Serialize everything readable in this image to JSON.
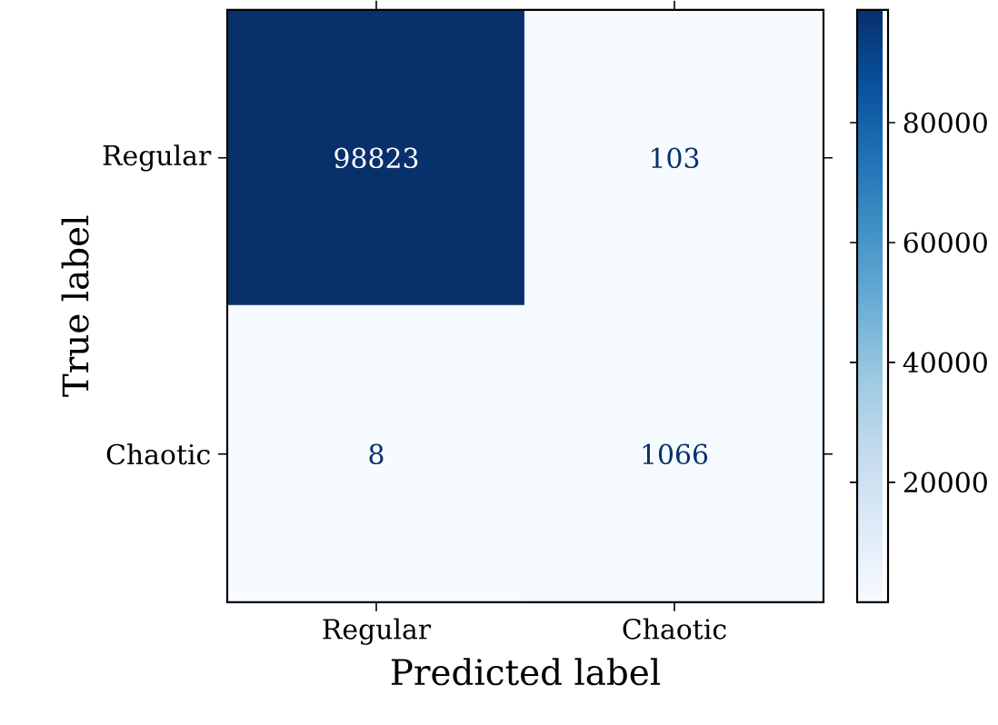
{
  "chart_data": {
    "type": "heatmap",
    "xlabel": "Predicted label",
    "ylabel": "True label",
    "categories": [
      "Regular",
      "Chaotic"
    ],
    "y_categories": [
      "Regular",
      "Chaotic"
    ],
    "cells": [
      [
        98823,
        103
      ],
      [
        8,
        1066
      ]
    ],
    "clim": [
      8,
      98823
    ],
    "cticks": [
      20000,
      40000,
      60000,
      80000
    ],
    "data_labels": true
  }
}
